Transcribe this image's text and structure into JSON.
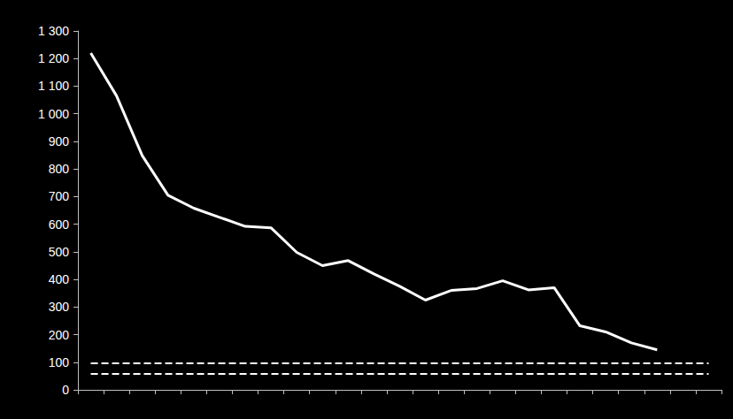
{
  "chart_data": {
    "type": "line",
    "categories": [
      null,
      null,
      null,
      null,
      null,
      null,
      null,
      null,
      null,
      null,
      null,
      null,
      null,
      null,
      null,
      null,
      null,
      null,
      null,
      null,
      null,
      null,
      null,
      null,
      null
    ],
    "series": [
      {
        "color": "#ffffff",
        "line_style": "solid",
        "marker": "none",
        "values": [
          1220,
          1065,
          848,
          705,
          658,
          625,
          592,
          587,
          498,
          450,
          468,
          420,
          375,
          325,
          360,
          367,
          395,
          362,
          370,
          232,
          210,
          170,
          145,
          null,
          null
        ]
      },
      {
        "color": "#ffffff",
        "line_style": "dashed",
        "marker": "none",
        "values": [
          96,
          96,
          96,
          96,
          96,
          96,
          96,
          96,
          96,
          96,
          96,
          96,
          96,
          96,
          96,
          96,
          96,
          96,
          96,
          96,
          96,
          96,
          96,
          96,
          96
        ]
      },
      {
        "color": "#ffffff",
        "line_style": "dashed",
        "marker": "none",
        "values": [
          58,
          58,
          58,
          58,
          58,
          58,
          58,
          58,
          58,
          58,
          58,
          58,
          58,
          58,
          58,
          58,
          58,
          58,
          58,
          58,
          58,
          58,
          58,
          58,
          58
        ]
      }
    ],
    "ylim": [
      0,
      1300
    ],
    "yticks": [
      0,
      100,
      200,
      300,
      400,
      500,
      600,
      700,
      800,
      900,
      {
        "value": 1000,
        "label": "1 000"
      },
      {
        "value": 1100,
        "label": "1 100"
      },
      {
        "value": 1200,
        "label": "1 200"
      },
      {
        "value": 1300,
        "label": "1 300"
      }
    ],
    "grid": false,
    "tick_labels": "y"
  }
}
